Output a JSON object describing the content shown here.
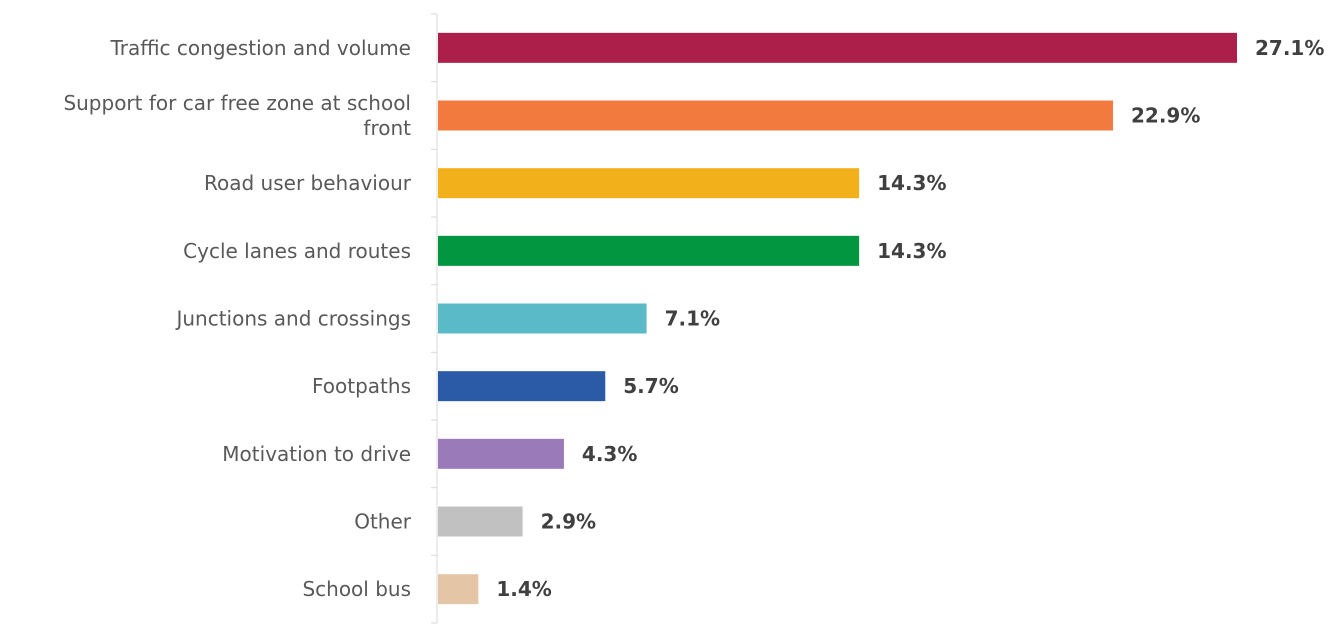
{
  "chart_data": {
    "type": "bar",
    "orientation": "horizontal",
    "categories": [
      "Traffic congestion and volume",
      "Support for car free zone at school front",
      "Road user behaviour",
      "Cycle lanes and routes",
      "Junctions and crossings",
      "Footpaths",
      "Motivation to drive",
      "Other",
      "School bus"
    ],
    "values": [
      27.1,
      22.9,
      14.3,
      14.3,
      7.1,
      5.7,
      4.3,
      2.9,
      1.4
    ],
    "value_labels": [
      "27.1%",
      "22.9%",
      "14.3%",
      "14.3%",
      "7.1%",
      "5.7%",
      "4.3%",
      "2.9%",
      "1.4%"
    ],
    "colors": [
      "#ad1f4b",
      "#f37a3f",
      "#f2b11a",
      "#029641",
      "#5abac8",
      "#2b5ba6",
      "#9b7aba",
      "#c1c1c1",
      "#e4c6a6"
    ],
    "axis_color": "#d9d9d9",
    "xlim": [
      0,
      27.1
    ],
    "grid": false,
    "legend": "none",
    "title": "",
    "xlabel": "",
    "ylabel": ""
  }
}
